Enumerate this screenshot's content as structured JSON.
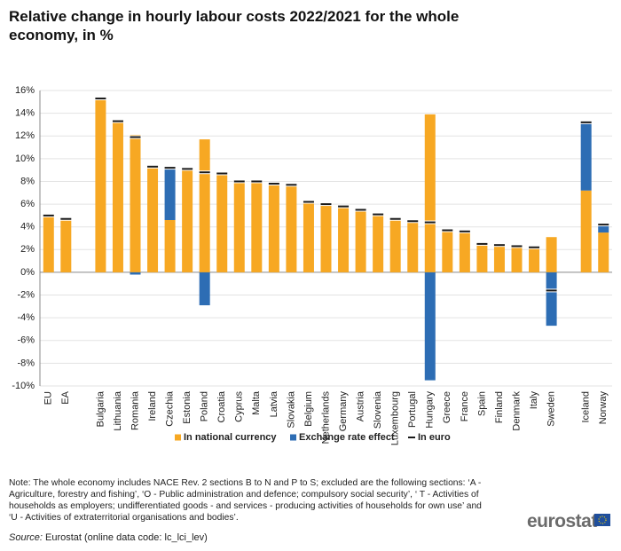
{
  "chart_data": {
    "type": "bar",
    "stacked": true,
    "title": "Relative change in hourly labour costs 2022/2021 for the whole economy, in %",
    "categories": [
      "EU",
      "EA",
      null,
      "Bulgaria",
      "Lithuania",
      "Romania",
      "Ireland",
      "Czechia",
      "Estonia",
      "Poland",
      "Croatia",
      "Cyprus",
      "Malta",
      "Latvia",
      "Slovakia",
      "Belgium",
      "Netherlands",
      "Germany",
      "Austria",
      "Slovenia",
      "Luxembourg",
      "Portugal",
      "Hungary",
      "Greece",
      "France",
      "Spain",
      "Finland",
      "Denmark",
      "Italy",
      "Sweden",
      null,
      "Iceland",
      "Norway"
    ],
    "series": [
      {
        "name": "In national currency",
        "color": "#f7a823",
        "values": [
          5.0,
          4.7,
          null,
          15.3,
          13.3,
          12.1,
          9.3,
          4.6,
          9.1,
          11.7,
          8.7,
          8.0,
          8.0,
          7.8,
          7.7,
          6.2,
          6.0,
          5.8,
          5.5,
          5.1,
          4.7,
          4.5,
          13.9,
          3.7,
          3.6,
          2.5,
          2.4,
          2.3,
          2.2,
          3.1,
          null,
          7.2,
          3.5
        ]
      },
      {
        "name": "Exchange rate effect",
        "color": "#2d6db4",
        "values": [
          0,
          0,
          null,
          0,
          0,
          -0.2,
          0,
          4.6,
          0,
          -2.9,
          0,
          0,
          0,
          0,
          0,
          0,
          0,
          0,
          0,
          0,
          0,
          0,
          -9.5,
          0,
          0,
          0,
          0,
          0,
          0,
          -4.7,
          null,
          6.0,
          0.7
        ]
      },
      {
        "name": "In euro",
        "color": "#1a1a1a",
        "type": "marker",
        "values": [
          5.0,
          4.7,
          null,
          15.3,
          13.3,
          11.9,
          9.3,
          9.2,
          9.1,
          8.8,
          8.7,
          8.0,
          8.0,
          7.8,
          7.7,
          6.2,
          6.0,
          5.8,
          5.5,
          5.1,
          4.7,
          4.5,
          4.4,
          3.7,
          3.6,
          2.5,
          2.4,
          2.3,
          2.2,
          -1.6,
          null,
          13.2,
          4.2
        ]
      }
    ],
    "ylim": [
      -10,
      16
    ],
    "yticks": [
      {
        "value": -10,
        "label": "-10%"
      },
      {
        "value": -8,
        "label": "-8%"
      },
      {
        "value": -6,
        "label": "-6%"
      },
      {
        "value": -4,
        "label": "-4%"
      },
      {
        "value": -2,
        "label": "-2%"
      },
      {
        "value": 0,
        "label": "0%"
      },
      {
        "value": 2,
        "label": "2%"
      },
      {
        "value": 4,
        "label": "4%"
      },
      {
        "value": 6,
        "label": "6%"
      },
      {
        "value": 8,
        "label": "8%"
      },
      {
        "value": 10,
        "label": "10%"
      },
      {
        "value": 12,
        "label": "12%"
      },
      {
        "value": 14,
        "label": "14%"
      },
      {
        "value": 16,
        "label": "16%"
      }
    ],
    "grid": true,
    "legend": "bottom",
    "note": [
      "Note: The whole economy includes  NACE Rev. 2 sections B to N and P to S; excluded are the following sections: ‘A -",
      "Agriculture, forestry and fishing’, ‘O - Public administration and defence; compulsory social security’, ‘ T - Activities of",
      "households as employers; undifferentiated goods - and services - producing activities of households for own use’ and",
      "‘U - Activities of extraterritorial organisations and bodies’."
    ],
    "source_label": "Source:",
    "source": "Eurostat (online data code: lc_lci_lev)",
    "logo": "eurostat"
  }
}
